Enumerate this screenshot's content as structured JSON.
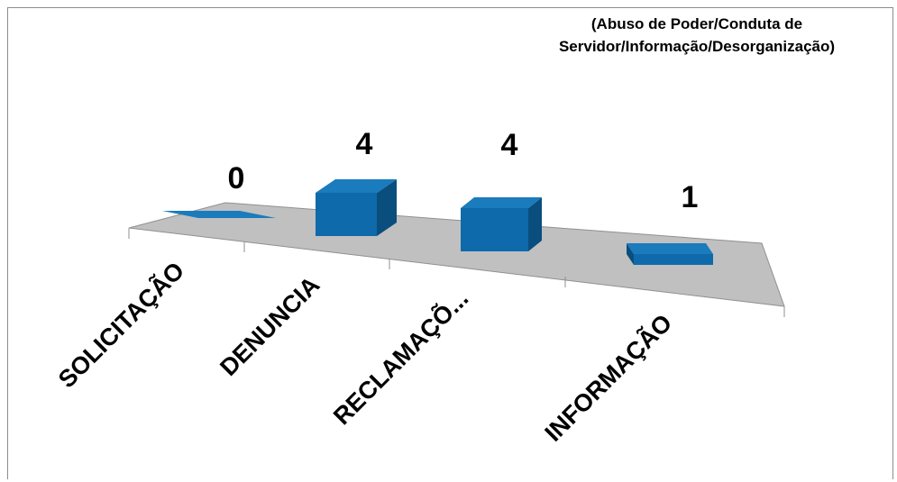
{
  "chart_data": {
    "type": "bar",
    "note": "(Abuso de Poder/Conduta de Servidor/Informação/Desorganização)",
    "categories": [
      "SOLICITAÇÃO",
      "DENUNCIA",
      "RECLAMAÇÕ...",
      "INFORMAÇÃO"
    ],
    "values": [
      0,
      4,
      4,
      1
    ],
    "ylim": [
      0,
      4
    ],
    "grid": false,
    "legend": "none",
    "colors": {
      "bar_front": "#0e6aaa",
      "bar_top": "#1a7bbd",
      "bar_side": "#0a4e7e",
      "floor": "#c0c0c0"
    }
  }
}
